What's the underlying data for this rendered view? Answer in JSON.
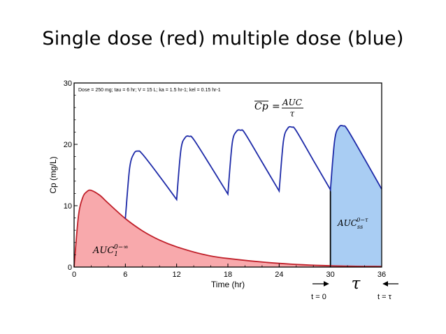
{
  "slide": {
    "title": "Single dose (red) multiple dose (blue)"
  },
  "chart_data": {
    "type": "area",
    "xlabel": "Time (hr)",
    "ylabel": "Cp (mg/L)",
    "xlim": [
      0,
      36
    ],
    "ylim": [
      0,
      30
    ],
    "xticks": [
      0,
      6,
      12,
      18,
      24,
      30,
      36
    ],
    "yticks": [
      0,
      10,
      20,
      30
    ],
    "annotation": "Dose = 250 mg; tau = 6 hr; V = 15 L; ka = 1.5 hr-1; kel = 0.15 hr-1",
    "params": {
      "dose_mg": 250,
      "tau_hr": 6,
      "V_L": 15,
      "ka_per_hr": 1.5,
      "kel_per_hr": 0.15
    },
    "series": [
      {
        "name": "single dose",
        "color": "#c0202a",
        "fill": "#f8a9ac",
        "x": [
          0,
          0.5,
          1,
          1.5,
          2,
          3,
          4,
          6,
          8,
          10,
          12,
          15,
          18,
          24,
          30,
          36
        ],
        "y": [
          0,
          8.2,
          11.3,
          12.3,
          12.5,
          11.7,
          10.4,
          7.9,
          5.9,
          4.4,
          3.3,
          2.1,
          1.4,
          0.6,
          0.2,
          0.1
        ]
      },
      {
        "name": "multiple dose",
        "color": "#1d2aa8",
        "fill": "#a9cdf3",
        "x": [
          6,
          6.5,
          7,
          7.5,
          8,
          10,
          12,
          12.5,
          13,
          13.5,
          14,
          16,
          18,
          18.5,
          19,
          19.5,
          20,
          22,
          24,
          24.5,
          25,
          25.5,
          26,
          28,
          30,
          30.5,
          31,
          31.5,
          32,
          34,
          36
        ],
        "y": [
          7.9,
          16.1,
          18.5,
          18.9,
          18.4,
          14.8,
          11.0,
          19.1,
          21.1,
          21.3,
          20.8,
          16.4,
          11.9,
          20.1,
          22.1,
          22.3,
          21.8,
          17.1,
          12.4,
          20.5,
          22.6,
          22.8,
          22.2,
          17.4,
          12.6,
          20.7,
          22.8,
          23.0,
          22.4,
          17.6,
          12.7
        ]
      }
    ],
    "areas": [
      {
        "label_base": "AUC",
        "sub": "1",
        "sup": "0−∞",
        "x_range": [
          0,
          36
        ],
        "color": "#f8a9ac"
      },
      {
        "label_base": "AUC",
        "sub": "ss",
        "sup": "0−τ",
        "x_range": [
          30,
          36
        ],
        "color": "#a9cdf3"
      }
    ],
    "formula": {
      "lhs": "Cp",
      "numerator": "AUC",
      "denominator": "τ"
    },
    "interval_markers": {
      "start_label": "t = 0",
      "end_label": "t = τ",
      "tau_symbol": "τ"
    }
  }
}
